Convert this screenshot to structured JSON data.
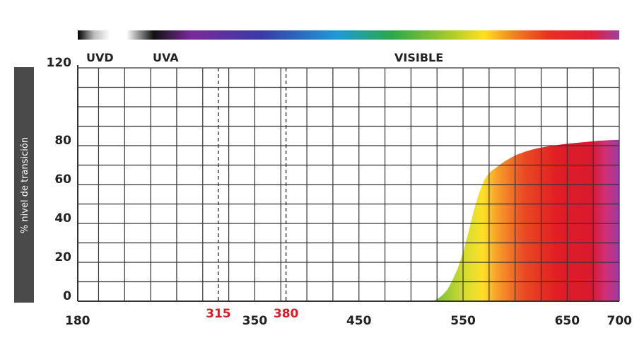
{
  "chart_data": {
    "type": "area",
    "ylabel": "% nivel de transición",
    "xlabel": "",
    "xlim": [
      180,
      700
    ],
    "ylim": [
      0,
      120
    ],
    "x_ticks": [
      180,
      350,
      450,
      550,
      650,
      700
    ],
    "highlight_ticks": [
      315,
      380
    ],
    "y_ticks": [
      0,
      20,
      40,
      60,
      80,
      120
    ],
    "regions": [
      "UVD",
      "UVA",
      "VISIBLE"
    ],
    "series": [
      {
        "x": [
          180,
          520,
          525,
          530,
          535,
          540,
          545,
          550,
          555,
          560,
          565,
          570,
          575,
          580,
          585,
          590,
          600,
          610,
          620,
          630,
          640,
          650,
          660,
          670,
          680,
          690,
          700
        ],
        "values": [
          0,
          0,
          1,
          3,
          6,
          11,
          17,
          25,
          35,
          46,
          55,
          62,
          66,
          68,
          70,
          72,
          75,
          77,
          78.5,
          79.5,
          80.3,
          81,
          81.5,
          82,
          82.5,
          82.8,
          83
        ]
      }
    ],
    "grid": true,
    "colors": {
      "background": "#ffffff",
      "grid": "#333333",
      "label_band": "#4a4a4a",
      "highlight_tick": "#d0202a"
    }
  }
}
